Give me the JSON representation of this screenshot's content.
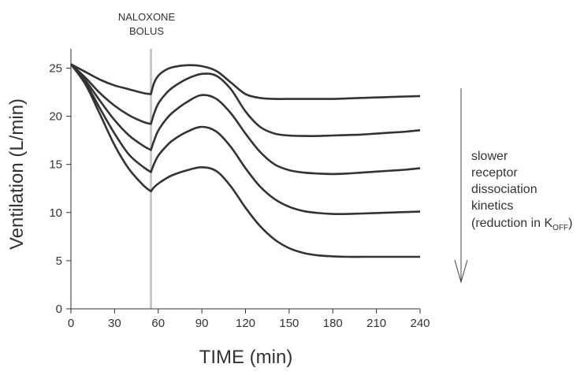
{
  "chart_data": {
    "type": "line",
    "xlabel": "TIME (min)",
    "ylabel": "Ventilation (L/min)",
    "xlim": [
      0,
      240
    ],
    "ylim": [
      0,
      27
    ],
    "xticks": [
      0,
      30,
      60,
      90,
      120,
      150,
      180,
      210,
      240
    ],
    "yticks": [
      0,
      5,
      10,
      15,
      20,
      25
    ],
    "grid": false,
    "event": {
      "x": 55,
      "label_line1": "NALOXONE",
      "label_line2": "BOLUS",
      "color": "#c8c8c8"
    },
    "annotation": {
      "lines": [
        "slower",
        "receptor",
        "dissociation",
        "kinetics"
      ],
      "last_line_prefix": "(reduction in K",
      "last_line_subscript": "OFF",
      "last_line_suffix": ")"
    },
    "line_color": "#333333",
    "series": [
      {
        "x": [
          0,
          10,
          20,
          30,
          40,
          50,
          55,
          57,
          60,
          65,
          70,
          80,
          90,
          100,
          110,
          120,
          130,
          140,
          150,
          160,
          170,
          180,
          190,
          200,
          210,
          220,
          230,
          240
        ],
        "y": [
          25.4,
          24.6,
          23.8,
          23.2,
          22.8,
          22.4,
          22.3,
          23.4,
          24.2,
          24.8,
          25.1,
          25.3,
          25.2,
          24.7,
          23.5,
          22.3,
          21.9,
          21.8,
          21.8,
          21.8,
          21.8,
          21.8,
          21.85,
          21.9,
          21.95,
          22.0,
          22.05,
          22.1
        ]
      },
      {
        "x": [
          0,
          10,
          20,
          30,
          40,
          50,
          55,
          57,
          60,
          65,
          70,
          80,
          90,
          100,
          110,
          120,
          130,
          140,
          150,
          160,
          170,
          180,
          190,
          200,
          210,
          220,
          230,
          240
        ],
        "y": [
          25.4,
          24.0,
          22.4,
          21.1,
          20.1,
          19.4,
          19.2,
          20.2,
          21.3,
          22.3,
          23.0,
          23.9,
          24.4,
          24.2,
          22.8,
          20.5,
          18.9,
          18.2,
          18.0,
          17.95,
          17.95,
          18.0,
          18.05,
          18.1,
          18.2,
          18.3,
          18.4,
          18.55
        ]
      },
      {
        "x": [
          0,
          10,
          20,
          30,
          40,
          50,
          55,
          57,
          60,
          65,
          70,
          80,
          90,
          100,
          110,
          120,
          130,
          140,
          150,
          160,
          170,
          180,
          190,
          200,
          210,
          220,
          230,
          240
        ],
        "y": [
          25.4,
          23.7,
          21.6,
          19.6,
          18.0,
          16.9,
          16.5,
          17.4,
          18.5,
          19.6,
          20.4,
          21.5,
          22.2,
          21.8,
          20.3,
          18.2,
          16.3,
          15.0,
          14.4,
          14.15,
          14.05,
          14.0,
          14.05,
          14.15,
          14.25,
          14.35,
          14.45,
          14.6
        ]
      },
      {
        "x": [
          0,
          10,
          20,
          30,
          40,
          50,
          55,
          57,
          60,
          65,
          70,
          80,
          90,
          100,
          110,
          120,
          130,
          140,
          150,
          160,
          170,
          180,
          190,
          200,
          210,
          220,
          230,
          240
        ],
        "y": [
          25.4,
          23.5,
          20.8,
          18.2,
          16.0,
          14.7,
          14.2,
          15.0,
          15.9,
          16.8,
          17.5,
          18.4,
          18.9,
          18.4,
          16.8,
          14.6,
          12.7,
          11.4,
          10.6,
          10.15,
          9.95,
          9.85,
          9.85,
          9.9,
          9.95,
          10.0,
          10.05,
          10.1
        ]
      },
      {
        "x": [
          0,
          10,
          20,
          30,
          40,
          50,
          55,
          57,
          60,
          65,
          70,
          80,
          90,
          100,
          110,
          120,
          130,
          140,
          150,
          160,
          170,
          180,
          190,
          200,
          210,
          220,
          230,
          240
        ],
        "y": [
          25.4,
          23.3,
          20.2,
          17.0,
          14.5,
          12.8,
          12.2,
          12.6,
          13.0,
          13.5,
          13.9,
          14.4,
          14.7,
          14.3,
          12.7,
          10.5,
          8.6,
          7.2,
          6.3,
          5.8,
          5.55,
          5.45,
          5.4,
          5.4,
          5.4,
          5.4,
          5.4,
          5.4
        ]
      }
    ]
  }
}
